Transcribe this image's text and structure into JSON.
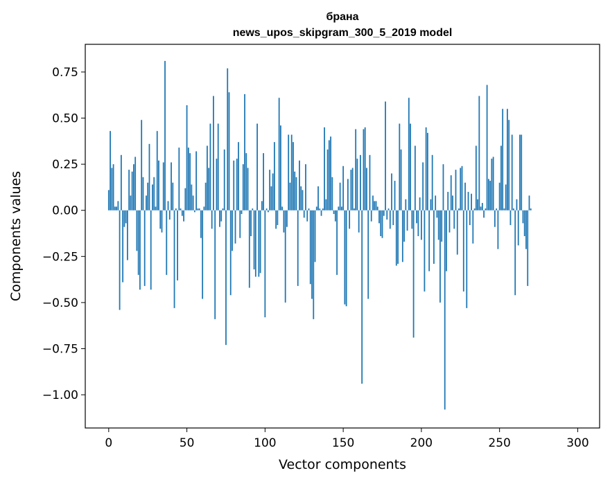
{
  "chart_data": {
    "type": "bar",
    "title": "брана",
    "subtitle": "news_upos_skipgram_300_5_2019 model",
    "xlabel": "Vector components",
    "ylabel": "Components values",
    "xlim": [
      -15,
      314
    ],
    "ylim": [
      -1.18,
      0.9
    ],
    "x_ticks": [
      0,
      50,
      100,
      150,
      200,
      250,
      300
    ],
    "x_tick_labels": [
      "0",
      "50",
      "100",
      "150",
      "200",
      "250",
      "300"
    ],
    "y_ticks": [
      0.75,
      0.5,
      0.25,
      0.0,
      -0.25,
      -0.5,
      -0.75,
      -1.0
    ],
    "y_tick_labels": [
      "0.75",
      "0.50",
      "0.25",
      "0.00",
      "−0.25",
      "−0.50",
      "−0.75",
      "−1.00"
    ],
    "bar_color": "#1f77b4",
    "values": [
      0.11,
      0.43,
      0.23,
      0.25,
      0.02,
      0.02,
      0.05,
      -0.54,
      0.3,
      -0.39,
      -0.09,
      -0.07,
      -0.27,
      0.22,
      0.08,
      0.21,
      0.25,
      0.29,
      -0.22,
      -0.35,
      -0.43,
      0.49,
      0.18,
      -0.41,
      0.08,
      0.15,
      0.36,
      -0.43,
      0.14,
      0.18,
      0.02,
      0.43,
      0.27,
      -0.1,
      -0.12,
      0.26,
      0.81,
      -0.35,
      0.05,
      -0.05,
      0.26,
      0.15,
      -0.53,
      0.01,
      -0.38,
      0.34,
      0.01,
      -0.03,
      -0.06,
      0.12,
      0.57,
      0.34,
      0.31,
      0.14,
      0.08,
      -0.01,
      0.32,
      0.01,
      0.01,
      -0.15,
      -0.48,
      0.02,
      0.15,
      0.35,
      0.23,
      0.47,
      -0.1,
      0.62,
      -0.59,
      0.28,
      0.47,
      -0.09,
      -0.06,
      0.01,
      0.33,
      -0.73,
      0.77,
      0.64,
      -0.46,
      -0.22,
      0.27,
      -0.18,
      0.28,
      0.37,
      -0.15,
      -0.02,
      0.25,
      0.63,
      0.31,
      0.23,
      -0.42,
      -0.14,
      0.01,
      -0.32,
      -0.36,
      0.47,
      -0.36,
      -0.34,
      0.05,
      0.31,
      -0.58,
      0.01,
      -0.01,
      0.22,
      0.13,
      0.2,
      0.37,
      -0.1,
      -0.08,
      0.61,
      0.46,
      0.02,
      -0.12,
      -0.5,
      -0.09,
      0.41,
      0.15,
      0.41,
      0.37,
      0.21,
      0.18,
      -0.41,
      0.27,
      0.13,
      0.11,
      -0.04,
      0.25,
      -0.06,
      0.01,
      -0.4,
      -0.48,
      -0.59,
      -0.28,
      0.02,
      0.13,
      0.01,
      -0.03,
      0.01,
      0.45,
      0.06,
      0.33,
      0.38,
      0.4,
      0.18,
      -0.02,
      -0.06,
      -0.35,
      0.02,
      0.15,
      0.02,
      0.24,
      -0.51,
      -0.52,
      0.17,
      -0.1,
      0.22,
      0.23,
      0.01,
      0.44,
      0.28,
      -0.12,
      0.3,
      -0.94,
      0.44,
      0.45,
      0.23,
      -0.48,
      0.3,
      -0.06,
      0.08,
      0.05,
      0.05,
      0.02,
      -0.07,
      -0.14,
      -0.15,
      -0.03,
      0.59,
      -0.05,
      0.01,
      -0.1,
      0.2,
      -0.08,
      0.16,
      -0.3,
      -0.29,
      0.47,
      0.33,
      -0.28,
      -0.17,
      0.06,
      -0.11,
      0.61,
      0.47,
      -0.1,
      -0.69,
      0.35,
      -0.07,
      -0.14,
      0.07,
      -0.16,
      0.26,
      -0.44,
      0.45,
      0.42,
      -0.33,
      0.06,
      0.3,
      -0.29,
      0.08,
      -0.04,
      -0.16,
      -0.5,
      -0.17,
      0.25,
      -1.08,
      -0.33,
      0.1,
      -0.12,
      0.19,
      0.08,
      -0.1,
      0.22,
      -0.24,
      0.01,
      0.23,
      0.24,
      -0.44,
      0.15,
      -0.53,
      0.1,
      -0.08,
      0.09,
      -0.18,
      0.01,
      0.35,
      0.06,
      0.62,
      0.02,
      0.04,
      -0.04,
      0.01,
      0.68,
      0.17,
      0.16,
      0.28,
      0.29,
      -0.09,
      0.01,
      -0.21,
      0.15,
      0.35,
      0.55,
      0.01,
      0.14,
      0.55,
      0.49,
      -0.08,
      0.41,
      0.01,
      -0.46,
      0.06,
      -0.19,
      0.41,
      0.41,
      -0.07,
      -0.14,
      -0.21,
      -0.41,
      0.08,
      0.01
    ]
  }
}
